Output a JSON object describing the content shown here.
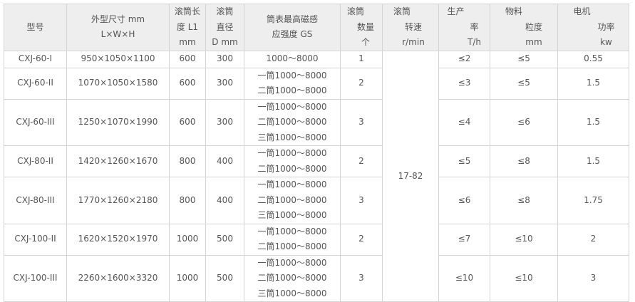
{
  "header": [
    {
      "lines": [
        "型号"
      ]
    },
    {
      "lines": [
        "外型尺寸 mm",
        "L×W×H"
      ]
    },
    {
      "lines": [
        "滚筒长",
        "度 L1",
        "mm"
      ]
    },
    {
      "lines": [
        "滚筒",
        "直径",
        "D mm"
      ]
    },
    {
      "lines": [
        "筒表最高磁感",
        "应强度 GS"
      ]
    },
    {
      "lines": [
        "滚筒",
        "数量",
        "个"
      ]
    },
    {
      "lines": [
        "滚筒",
        "转速",
        "r/min"
      ]
    },
    {
      "lines": [
        "生产",
        "率",
        "T/h"
      ]
    },
    {
      "lines": [
        "物料",
        "粒度",
        "mm"
      ]
    },
    {
      "lines": [
        "电机",
        "功率",
        "kw"
      ]
    }
  ],
  "speed": "17-82",
  "rows": [
    {
      "model": "CXJ-60-I",
      "size": "950×1050×1100",
      "len": "600",
      "dia": "300",
      "gs": [
        "1000～8000"
      ],
      "count": "1",
      "rate": "≤2",
      "grain": "≤5",
      "power": "0.55"
    },
    {
      "model": "CXJ-60-II",
      "size": "1070×1050×1580",
      "len": "600",
      "dia": "300",
      "gs": [
        "一筒1000～8000",
        "二筒1000～8000"
      ],
      "count": "2",
      "rate": "≤3",
      "grain": "≤5",
      "power": "1.5"
    },
    {
      "model": "CXJ-60-III",
      "size": "1250×1070×1990",
      "len": "600",
      "dia": "300",
      "gs": [
        "一筒1000～8000",
        "二筒1000～8000",
        "三筒1000～8000"
      ],
      "count": "3",
      "rate": "≤4",
      "grain": "≤6",
      "power": "1.5"
    },
    {
      "model": "CXJ-80-II",
      "size": "1420×1260×1670",
      "len": "800",
      "dia": "400",
      "gs": [
        "一筒1000～8000",
        "二筒1000～8000"
      ],
      "count": "2",
      "rate": "≤5",
      "grain": "≤8",
      "power": "1.5"
    },
    {
      "model": "CXJ-80-III",
      "size": "1770×1260×2180",
      "len": "800",
      "dia": "400",
      "gs": [
        "一筒1000～8000",
        "二筒1000～8000",
        "三筒1000～8000"
      ],
      "count": "3",
      "rate": "≤6",
      "grain": "≤8",
      "power": "1.75"
    },
    {
      "model": "CXJ-100-II",
      "size": "1620×1520×1970",
      "len": "1000",
      "dia": "500",
      "gs": [
        "一筒1000～8000",
        "二筒1000～8000"
      ],
      "count": "2",
      "rate": "≤7",
      "grain": "≤10",
      "power": "2"
    },
    {
      "model": "CXJ-100-III",
      "size": "2260×1600×3320",
      "len": "1000",
      "dia": "500",
      "gs": [
        "一筒1000～8000",
        "二筒1000～8000",
        "三筒1000～8000"
      ],
      "count": "3",
      "rate": "≤10",
      "grain": "≤10",
      "power": "3"
    }
  ]
}
